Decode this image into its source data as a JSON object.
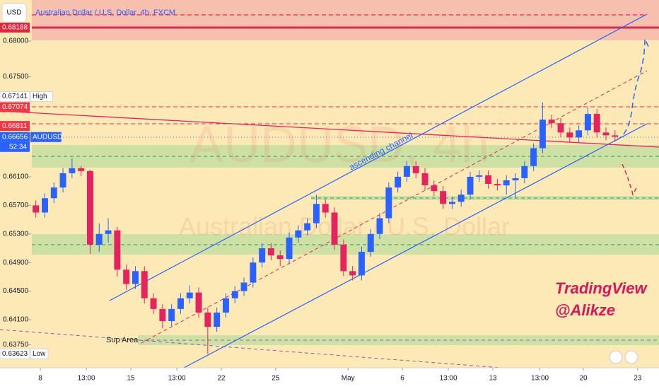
{
  "header": {
    "currency": "USD",
    "title": "Australian Dollar / U.S. Dollar, 4h, FXCM"
  },
  "chart_data": {
    "type": "candlestick",
    "x": [
      -0.25,
      0.25,
      0.75,
      1.25,
      1.75,
      2.25,
      2.75,
      3.25,
      3.75,
      4.25,
      4.75,
      5.25,
      5.75,
      6.25,
      6.75,
      7.25,
      7.75,
      8.25,
      8.75,
      9.25,
      9.75,
      10.25,
      10.75,
      11.25,
      11.75,
      12.25,
      12.75,
      13.25,
      13.75,
      14.25,
      14.75,
      15.25,
      15.75,
      16.25,
      16.75,
      17.25,
      17.75,
      18.25,
      18.75,
      19.25,
      19.75,
      20.25,
      20.75,
      21.25,
      21.75,
      22.25,
      22.75,
      23.25,
      23.75,
      24.25,
      24.75,
      25.25,
      25.75,
      26.25,
      26.75,
      27.25,
      27.75,
      28.25,
      28.75,
      29.25,
      29.75,
      30.25,
      30.75,
      31.25,
      31.75
    ],
    "open": [
      0.657,
      0.656,
      0.658,
      0.6595,
      0.6615,
      0.6622,
      0.6618,
      0.6515,
      0.653,
      0.6535,
      0.648,
      0.646,
      0.6478,
      0.644,
      0.6425,
      0.6408,
      0.6425,
      0.644,
      0.6448,
      0.642,
      0.64,
      0.642,
      0.644,
      0.645,
      0.6462,
      0.649,
      0.651,
      0.65,
      0.6495,
      0.6525,
      0.6535,
      0.6545,
      0.6572,
      0.656,
      0.6515,
      0.6478,
      0.6472,
      0.6505,
      0.653,
      0.6552,
      0.6595,
      0.661,
      0.6625,
      0.6615,
      0.6598,
      0.659,
      0.6572,
      0.6575,
      0.6585,
      0.661,
      0.6612,
      0.66,
      0.6598,
      0.6605,
      0.6608,
      0.6625,
      0.665,
      0.669,
      0.6685,
      0.6672,
      0.6665,
      0.6675,
      0.6698,
      0.6672,
      0.6668
    ],
    "high": [
      0.6577,
      0.6587,
      0.6602,
      0.6622,
      0.6636,
      0.6625,
      0.662,
      0.6545,
      0.6552,
      0.654,
      0.6487,
      0.6485,
      0.6485,
      0.6447,
      0.6432,
      0.6432,
      0.6447,
      0.6458,
      0.6455,
      0.6427,
      0.6427,
      0.6447,
      0.6457,
      0.6469,
      0.6497,
      0.6517,
      0.6517,
      0.6507,
      0.6532,
      0.6542,
      0.6552,
      0.6585,
      0.6579,
      0.6567,
      0.6522,
      0.6485,
      0.6512,
      0.6537,
      0.6559,
      0.6602,
      0.6617,
      0.6632,
      0.6632,
      0.6622,
      0.6605,
      0.6597,
      0.6582,
      0.6592,
      0.6617,
      0.6619,
      0.6619,
      0.6607,
      0.6612,
      0.6615,
      0.6632,
      0.6657,
      0.6714,
      0.6697,
      0.6692,
      0.6679,
      0.6682,
      0.6707,
      0.6705,
      0.6679,
      0.6675
    ],
    "low": [
      0.6553,
      0.6553,
      0.6573,
      0.6588,
      0.6608,
      0.6611,
      0.6502,
      0.6505,
      0.6518,
      0.647,
      0.6452,
      0.6453,
      0.6433,
      0.6418,
      0.6398,
      0.6401,
      0.6418,
      0.6433,
      0.6413,
      0.6362,
      0.6393,
      0.6413,
      0.6433,
      0.6443,
      0.6455,
      0.6483,
      0.6493,
      0.6485,
      0.6488,
      0.6518,
      0.6528,
      0.6538,
      0.6553,
      0.6508,
      0.6471,
      0.6465,
      0.6465,
      0.6498,
      0.6523,
      0.6545,
      0.6588,
      0.6603,
      0.6608,
      0.6591,
      0.6583,
      0.6565,
      0.6565,
      0.6568,
      0.6578,
      0.6603,
      0.6593,
      0.6591,
      0.6585,
      0.658,
      0.6601,
      0.6618,
      0.6643,
      0.6678,
      0.6665,
      0.6658,
      0.6658,
      0.6668,
      0.6665,
      0.6661,
      0.6659
    ],
    "close": [
      0.656,
      0.658,
      0.6595,
      0.6615,
      0.6622,
      0.6618,
      0.6515,
      0.653,
      0.6535,
      0.648,
      0.646,
      0.6478,
      0.644,
      0.6425,
      0.6408,
      0.6425,
      0.644,
      0.6448,
      0.642,
      0.64,
      0.642,
      0.644,
      0.645,
      0.6462,
      0.649,
      0.651,
      0.65,
      0.6495,
      0.6525,
      0.6535,
      0.6545,
      0.6572,
      0.656,
      0.6515,
      0.6478,
      0.6472,
      0.6505,
      0.653,
      0.6552,
      0.6595,
      0.661,
      0.6625,
      0.6615,
      0.6598,
      0.659,
      0.6572,
      0.6575,
      0.6585,
      0.661,
      0.6612,
      0.66,
      0.6598,
      0.6605,
      0.6608,
      0.6625,
      0.665,
      0.669,
      0.6685,
      0.6672,
      0.6665,
      0.6675,
      0.6698,
      0.6672,
      0.6668,
      0.6666
    ],
    "up_color": "#2962ff",
    "down_color": "#e5245f",
    "xlim": [
      -2.23,
      34.18
    ],
    "ylim": [
      0.63427,
      0.68574
    ],
    "xticks": [
      {
        "value": 0,
        "label": "8"
      },
      {
        "value": 2.54,
        "label": "13:00"
      },
      {
        "value": 5,
        "label": "15"
      },
      {
        "value": 7.54,
        "label": "13:00"
      },
      {
        "value": 10,
        "label": "22"
      },
      {
        "value": 13,
        "label": "25"
      },
      {
        "value": 17,
        "label": "May"
      },
      {
        "value": 20,
        "label": "6"
      },
      {
        "value": 22.54,
        "label": "13:00"
      },
      {
        "value": 25,
        "label": "13"
      },
      {
        "value": 27.6,
        "label": "13:00"
      },
      {
        "value": 30,
        "label": "20"
      },
      {
        "value": 33,
        "label": "23"
      }
    ],
    "yticks": [
      {
        "value": 0.68,
        "label": "0.68000"
      },
      {
        "value": 0.675,
        "label": "0.67500"
      },
      {
        "value": 0.661,
        "label": "0.66100"
      },
      {
        "value": 0.657,
        "label": "0.65700"
      },
      {
        "value": 0.653,
        "label": "0.65300"
      },
      {
        "value": 0.649,
        "label": "0.64900"
      },
      {
        "value": 0.645,
        "label": "0.64500"
      },
      {
        "value": 0.641,
        "label": "0.64100"
      },
      {
        "value": 0.6375,
        "label": "0.63750"
      }
    ],
    "price_labels": [
      {
        "value": 0.68188,
        "label": "0.68188",
        "color": "#e0263f"
      },
      {
        "value": 0.67141,
        "label": "0.67141",
        "tag": "High",
        "color": "#ffffff"
      },
      {
        "value": 0.67074,
        "label": "0.67074",
        "color": "#f23645"
      },
      {
        "value": 0.66811,
        "label": "0.66811",
        "color": "#f23645"
      },
      {
        "value": 0.66656,
        "label": "0.66656",
        "tag": "AUDUSD",
        "sub": "52:34",
        "color": "#2962ff"
      },
      {
        "value": 0.63623,
        "label": "0.63623",
        "tag": "Low",
        "color": "#ffffff"
      }
    ],
    "watermark": {
      "symbol": "AUDUSD, 4h",
      "name": "Australian Dollar / U.S. Dollar"
    },
    "annotations": {
      "channel": "ascending channel",
      "support": "Sup Area",
      "author_1": "TradingView",
      "author_2": "@Alikze"
    }
  }
}
